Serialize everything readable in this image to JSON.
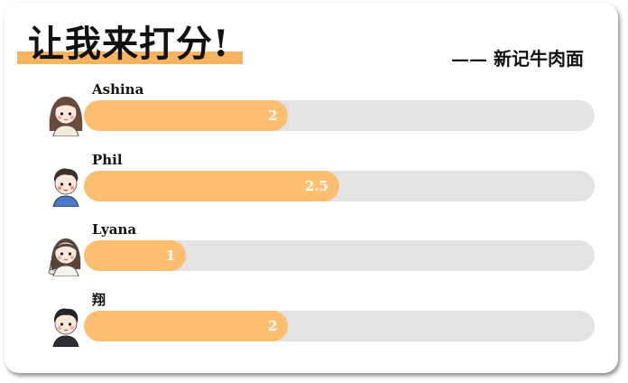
{
  "title": "让我来打分!",
  "subtitle": "—— 新记牛肉面",
  "rating_max": 5,
  "colors": {
    "accent": "#f9b45f",
    "bar_fill": "#fdbe70",
    "bar_track": "#e3e3e3",
    "text": "#111111"
  },
  "ratings": [
    {
      "name": "Ashina",
      "score": 2,
      "score_label": "2",
      "avatar_icon": "girl-long-hair-avatar-icon"
    },
    {
      "name": "Phil",
      "score": 2.5,
      "score_label": "2.5",
      "avatar_icon": "boy-blue-shirt-avatar-icon"
    },
    {
      "name": "Lyana",
      "score": 1,
      "score_label": "1",
      "avatar_icon": "girl-peace-sign-avatar-icon"
    },
    {
      "name": "翔",
      "score": 2,
      "score_label": "2",
      "avatar_icon": "boy-dark-hair-avatar-icon"
    }
  ]
}
